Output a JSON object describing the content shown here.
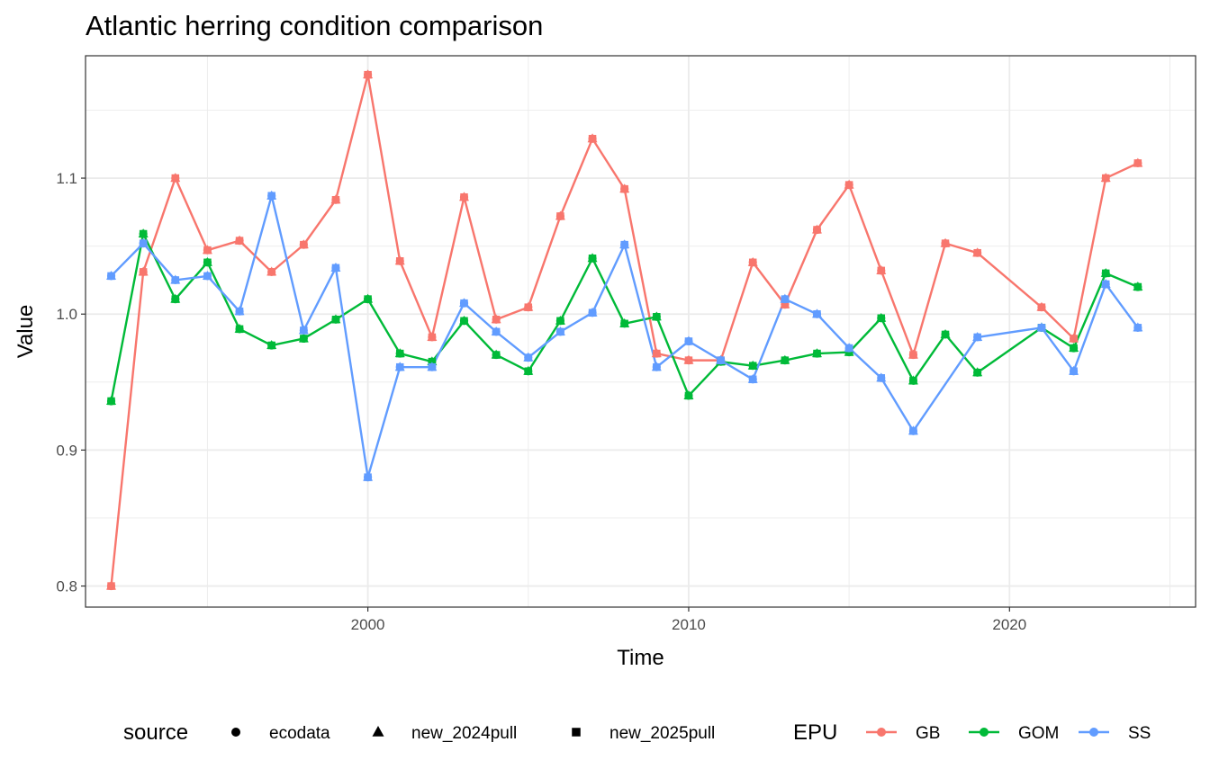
{
  "chart_data": {
    "type": "line",
    "title": "Atlantic herring condition comparison",
    "xlabel": "Time",
    "ylabel": "Value",
    "xlim": [
      1991.2,
      2025.8
    ],
    "ylim": [
      0.7845,
      1.19
    ],
    "x_ticks": [
      2000,
      2010,
      2020
    ],
    "x_tick_labels": [
      "2000",
      "2010",
      "2020"
    ],
    "y_ticks": [
      0.8,
      0.9,
      1.0,
      1.1
    ],
    "y_tick_labels": [
      "0.8",
      "0.9",
      "1.0",
      "1.1"
    ],
    "grid": true,
    "legend_position": "bottom",
    "shape_legend": {
      "title": "source",
      "items": [
        {
          "label": "ecodata",
          "shape": "circle"
        },
        {
          "label": "new_2024pull",
          "shape": "triangle"
        },
        {
          "label": "new_2025pull",
          "shape": "square"
        }
      ]
    },
    "color_legend": {
      "title": "EPU",
      "items": [
        {
          "label": "GB",
          "color": "#F8766D"
        },
        {
          "label": "GOM",
          "color": "#00BA38"
        },
        {
          "label": "SS",
          "color": "#619CFF"
        }
      ]
    },
    "series": [
      {
        "name": "GB",
        "color": "#F8766D",
        "x": [
          1992,
          1993,
          1994,
          1995,
          1996,
          1997,
          1998,
          1999,
          2000,
          2001,
          2002,
          2003,
          2004,
          2005,
          2006,
          2007,
          2008,
          2009,
          2010,
          2011,
          2012,
          2013,
          2014,
          2015,
          2016,
          2017,
          2018,
          2019,
          2021,
          2022,
          2023,
          2024
        ],
        "y": [
          0.8,
          1.031,
          1.1,
          1.047,
          1.054,
          1.031,
          1.051,
          1.084,
          1.176,
          1.039,
          0.983,
          1.086,
          0.996,
          1.005,
          1.072,
          1.129,
          1.092,
          0.971,
          0.966,
          0.966,
          1.038,
          1.007,
          1.062,
          1.095,
          1.032,
          0.97,
          1.052,
          1.045,
          1.005,
          0.982,
          1.1,
          1.111
        ]
      },
      {
        "name": "GOM",
        "color": "#00BA38",
        "x": [
          1992,
          1993,
          1994,
          1995,
          1996,
          1997,
          1998,
          1999,
          2000,
          2001,
          2002,
          2003,
          2004,
          2005,
          2006,
          2007,
          2008,
          2009,
          2010,
          2011,
          2012,
          2013,
          2014,
          2015,
          2016,
          2017,
          2018,
          2019,
          2021,
          2022,
          2023,
          2024
        ],
        "y": [
          0.936,
          1.059,
          1.011,
          1.038,
          0.989,
          0.977,
          0.982,
          0.996,
          1.011,
          0.971,
          0.965,
          0.995,
          0.97,
          0.958,
          0.995,
          1.041,
          0.993,
          0.998,
          0.94,
          0.965,
          0.962,
          0.966,
          0.971,
          0.972,
          0.997,
          0.951,
          0.985,
          0.957,
          0.99,
          0.975,
          1.03,
          1.02
        ]
      },
      {
        "name": "SS",
        "color": "#619CFF",
        "x": [
          1992,
          1993,
          1994,
          1995,
          1996,
          1997,
          1998,
          1999,
          2000,
          2001,
          2002,
          2003,
          2004,
          2005,
          2006,
          2007,
          2008,
          2009,
          2010,
          2011,
          2012,
          2013,
          2014,
          2015,
          2016,
          2017,
          2019,
          2021,
          2022,
          2023,
          2024
        ],
        "y": [
          1.028,
          1.052,
          1.025,
          1.028,
          1.002,
          1.087,
          0.988,
          1.034,
          0.88,
          0.961,
          0.961,
          1.008,
          0.987,
          0.968,
          0.987,
          1.001,
          1.051,
          0.961,
          0.98,
          0.966,
          0.952,
          1.011,
          1.0,
          0.975,
          0.953,
          0.914,
          0.983,
          0.99,
          0.958,
          1.022,
          0.99
        ]
      }
    ]
  }
}
